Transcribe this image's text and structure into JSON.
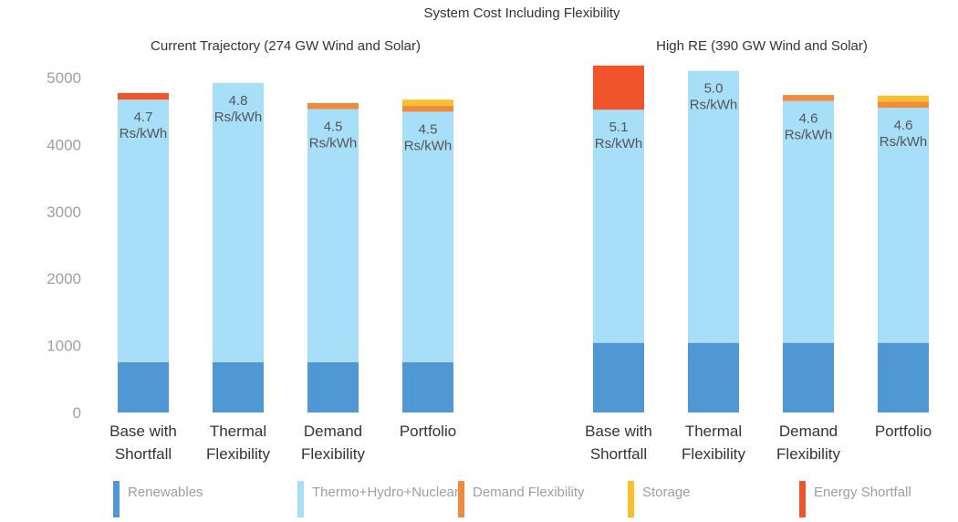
{
  "chart_data": {
    "type": "bar",
    "stacked": true,
    "title": "System Cost Including Flexibility",
    "ylim": [
      0,
      5200
    ],
    "yticks": [
      0,
      1000,
      2000,
      3000,
      4000,
      5000
    ],
    "grid": false,
    "legend_position": "bottom",
    "series_names": [
      "Renewables",
      "Thermo+Hydro+Nuclear",
      "Demand Flexibility",
      "Storage",
      "Energy Shortfall"
    ],
    "colors": {
      "Renewables": "#5098d4",
      "Thermo+Hydro+Nuclear": "#a8dff8",
      "Demand Flexibility": "#f08a3c",
      "Storage": "#fbbf2c",
      "Energy Shortfall": "#f0542b",
      "label_text": "#555555",
      "axis_text": "#9aa0a6"
    },
    "panels": [
      {
        "subtitle": "Current Trajectory (274 GW Wind and Solar)",
        "categories": [
          [
            "Base with",
            "Shortfall"
          ],
          [
            "Thermal",
            "Flexibility"
          ],
          [
            "Demand",
            "Flexibility"
          ],
          [
            "Portfolio"
          ]
        ],
        "bar_labels": [
          [
            "4.7",
            "Rs/kWh"
          ],
          [
            "4.8",
            "Rs/kWh"
          ],
          [
            "4.5",
            "Rs/kWh"
          ],
          [
            "4.5",
            "Rs/kWh"
          ]
        ],
        "series": [
          {
            "name": "Renewables",
            "values": [
              750,
              750,
              750,
              750
            ]
          },
          {
            "name": "Thermo+Hydro+Nuclear",
            "values": [
              3920,
              4170,
              3780,
              3740
            ]
          },
          {
            "name": "Demand Flexibility",
            "values": [
              0,
              0,
              90,
              90
            ]
          },
          {
            "name": "Storage",
            "values": [
              0,
              0,
              0,
              90
            ]
          },
          {
            "name": "Energy Shortfall",
            "values": [
              100,
              0,
              0,
              0
            ]
          }
        ]
      },
      {
        "subtitle": "High RE (390 GW Wind and Solar)",
        "categories": [
          [
            "Base with",
            "Shortfall"
          ],
          [
            "Thermal",
            "Flexibility"
          ],
          [
            "Demand",
            "Flexibility"
          ],
          [
            "Portfolio"
          ]
        ],
        "bar_labels": [
          [
            "5.1",
            "Rs/kWh"
          ],
          [
            "5.0",
            "Rs/kWh"
          ],
          [
            "4.6",
            "Rs/kWh"
          ],
          [
            "4.6",
            "Rs/kWh"
          ]
        ],
        "series": [
          {
            "name": "Renewables",
            "values": [
              1040,
              1040,
              1040,
              1040
            ]
          },
          {
            "name": "Thermo+Hydro+Nuclear",
            "values": [
              3480,
              4060,
              3610,
              3510
            ]
          },
          {
            "name": "Demand Flexibility",
            "values": [
              0,
              0,
              90,
              90
            ]
          },
          {
            "name": "Storage",
            "values": [
              0,
              0,
              0,
              90
            ]
          },
          {
            "name": "Energy Shortfall",
            "values": [
              660,
              0,
              0,
              0
            ]
          }
        ]
      }
    ]
  }
}
